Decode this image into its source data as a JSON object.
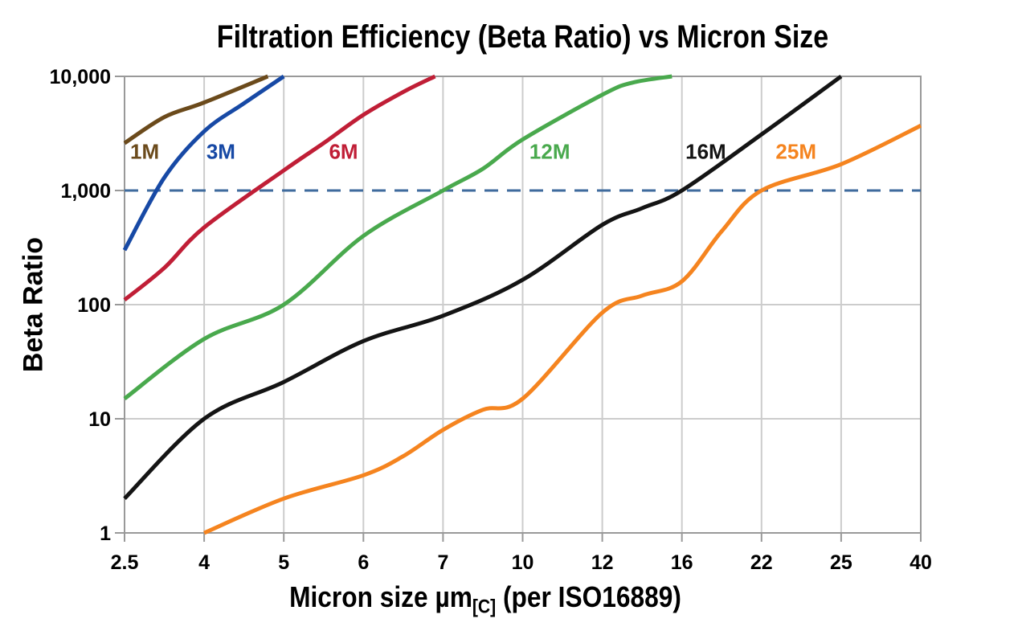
{
  "figure": {
    "background": "#ffffff"
  },
  "chart_data": {
    "type": "line",
    "title": "Filtration Efficiency (Beta Ratio) vs Micron Size",
    "ylabel": "Beta Ratio",
    "xlabel_prefix": "Micron size µm",
    "xlabel_subscript": "[C]",
    "xlabel_suffix": " (per ISO16889)",
    "x_scale": "categorical",
    "x_categories": [
      2.5,
      4,
      5,
      6,
      7,
      10,
      12,
      16,
      22,
      25,
      40
    ],
    "x_tick_labels": [
      "2.5",
      "4",
      "5",
      "6",
      "7",
      "10",
      "12",
      "16",
      "22",
      "25",
      "40"
    ],
    "y_scale": "log",
    "ylim": [
      1,
      10000
    ],
    "y_ticks": [
      1,
      10,
      100,
      1000,
      10000
    ],
    "y_tick_labels": [
      "1",
      "10",
      "100",
      "1,000",
      "10,000"
    ],
    "grid": {
      "vertical": true,
      "horizontal": true,
      "color": "#cccccc"
    },
    "border_color": "#999999",
    "reference_line": {
      "value": 1000,
      "style": "dashed",
      "color": "#3f6b9d"
    },
    "series": [
      {
        "name": "1M",
        "color": "#6b4a1b",
        "label": {
          "x": 2.88,
          "beta": 2200
        },
        "points": [
          [
            2.5,
            2600
          ],
          [
            3.25,
            4400
          ],
          [
            4,
            5900
          ],
          [
            4.8,
            10000
          ]
        ]
      },
      {
        "name": "3M",
        "color": "#1749a5",
        "label": {
          "x": 4.21,
          "beta": 2200
        },
        "points": [
          [
            2.5,
            300
          ],
          [
            3.25,
            1300
          ],
          [
            4,
            3300
          ],
          [
            4.5,
            5800
          ],
          [
            5,
            10000
          ]
        ]
      },
      {
        "name": "6M",
        "color": "#c01e36",
        "label": {
          "x": 5.75,
          "beta": 2200
        },
        "points": [
          [
            2.5,
            110
          ],
          [
            3.25,
            210
          ],
          [
            4,
            475
          ],
          [
            5,
            1500
          ],
          [
            5.5,
            2600
          ],
          [
            6,
            4600
          ],
          [
            6.5,
            7300
          ],
          [
            6.9,
            10000
          ]
        ]
      },
      {
        "name": "12M",
        "color": "#49a94d",
        "label": {
          "x": 10.68,
          "beta": 2200
        },
        "points": [
          [
            2.5,
            15
          ],
          [
            4,
            50
          ],
          [
            5,
            100
          ],
          [
            6,
            400
          ],
          [
            7,
            1000
          ],
          [
            8.5,
            1550
          ],
          [
            10,
            2800
          ],
          [
            12,
            6900
          ],
          [
            13.5,
            8800
          ],
          [
            15.5,
            10000
          ]
        ]
      },
      {
        "name": "16M",
        "color": "#141414",
        "label": {
          "x": 17.8,
          "beta": 2200
        },
        "points": [
          [
            2.5,
            2
          ],
          [
            4,
            10
          ],
          [
            5,
            21
          ],
          [
            6,
            48
          ],
          [
            7,
            80
          ],
          [
            10,
            165
          ],
          [
            12,
            500
          ],
          [
            14,
            700
          ],
          [
            16,
            1000
          ],
          [
            22,
            3100
          ],
          [
            25,
            10000
          ]
        ]
      },
      {
        "name": "25M",
        "color": "#f5841f",
        "label": {
          "x": 23.3,
          "beta": 2200
        },
        "points": [
          [
            4,
            1
          ],
          [
            5,
            2
          ],
          [
            6,
            3.2
          ],
          [
            6.5,
            4.7
          ],
          [
            7,
            8
          ],
          [
            8.5,
            12
          ],
          [
            10,
            15
          ],
          [
            12,
            85
          ],
          [
            14,
            120
          ],
          [
            16,
            160
          ],
          [
            19,
            440
          ],
          [
            22,
            1000
          ],
          [
            25,
            1700
          ],
          [
            40,
            3700
          ]
        ]
      }
    ]
  }
}
